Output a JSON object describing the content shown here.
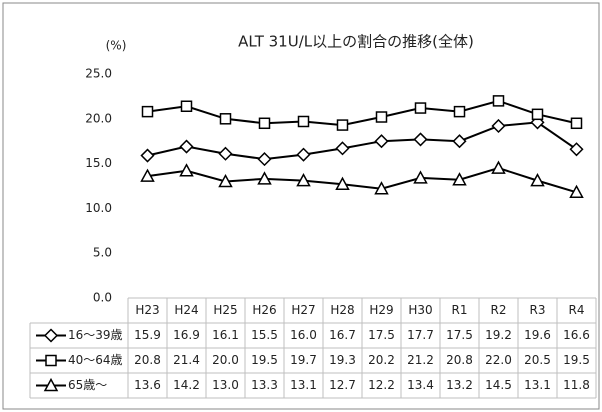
{
  "chart_data": {
    "type": "line",
    "title": "ALT 31U/L以上の割合の推移(全体)",
    "y_label": "(%)",
    "categories": [
      "H23",
      "H24",
      "H25",
      "H26",
      "H27",
      "H28",
      "H29",
      "H30",
      "R1",
      "R2",
      "R3",
      "R4"
    ],
    "ylim": [
      0,
      25
    ],
    "yticks": [
      {
        "value": 0,
        "label": "0.0"
      },
      {
        "value": 5,
        "label": "5.0"
      },
      {
        "value": 10,
        "label": "10.0"
      },
      {
        "value": 15,
        "label": "15.0"
      },
      {
        "value": 20,
        "label": "20.0"
      },
      {
        "value": 25,
        "label": "25.0"
      }
    ],
    "grid": false,
    "series": [
      {
        "name": "16〜39歳",
        "color": "#000000",
        "marker": "diamond",
        "values": [
          15.9,
          16.9,
          16.1,
          15.5,
          16.0,
          16.7,
          17.5,
          17.7,
          17.5,
          19.2,
          19.6,
          16.6
        ],
        "value_labels": [
          "15.9",
          "16.9",
          "16.1",
          "15.5",
          "16.0",
          "16.7",
          "17.5",
          "17.7",
          "17.5",
          "19.2",
          "19.6",
          "16.6"
        ]
      },
      {
        "name": "40〜64歳",
        "color": "#000000",
        "marker": "square",
        "values": [
          20.8,
          21.4,
          20.0,
          19.5,
          19.7,
          19.3,
          20.2,
          21.2,
          20.8,
          22.0,
          20.5,
          19.5
        ],
        "value_labels": [
          "20.8",
          "21.4",
          "20.0",
          "19.5",
          "19.7",
          "19.3",
          "20.2",
          "21.2",
          "20.8",
          "22.0",
          "20.5",
          "19.5"
        ]
      },
      {
        "name": "65歳〜",
        "color": "#000000",
        "marker": "triangle",
        "values": [
          13.6,
          14.2,
          13.0,
          13.3,
          13.1,
          12.7,
          12.2,
          13.4,
          13.2,
          14.5,
          13.1,
          11.8
        ],
        "value_labels": [
          "13.6",
          "14.2",
          "13.0",
          "13.3",
          "13.1",
          "12.7",
          "12.2",
          "13.4",
          "13.2",
          "14.5",
          "13.1",
          "11.8"
        ]
      }
    ]
  }
}
